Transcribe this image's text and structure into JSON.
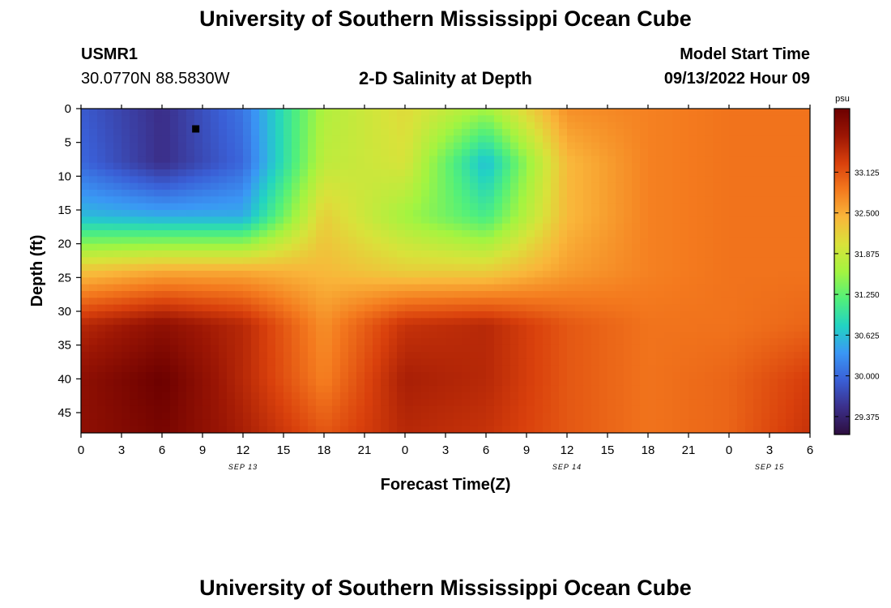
{
  "header": {
    "title": "University of Southern Mississippi Ocean Cube",
    "station_id": "USMR1",
    "coordinates": "30.0770N  88.5830W",
    "chart_title": "2-D Salinity at Depth",
    "model_start_label": "Model Start Time",
    "model_start_value": "09/13/2022 Hour 09"
  },
  "footer": {
    "title": "University of Southern Mississippi Ocean Cube"
  },
  "colors": {
    "stops": [
      "#2d0e3e",
      "#3b2f8a",
      "#3a5fd6",
      "#3a97f5",
      "#22d3c3",
      "#52f07a",
      "#a4f440",
      "#d9e23a",
      "#f9b63a",
      "#f47a1e",
      "#d9400c",
      "#9c1604",
      "#6c0000"
    ]
  },
  "chart_data": {
    "type": "heatmap",
    "title": "2-D Salinity at Depth",
    "xlabel": "Forecast Time(Z)",
    "ylabel": "Depth (ft)",
    "x_hours": [
      0,
      6,
      12,
      18,
      24,
      30,
      36,
      42,
      48,
      54
    ],
    "y_depths": [
      0,
      8,
      16,
      24,
      32,
      40,
      48
    ],
    "values": [
      [
        29.9,
        29.5,
        30.1,
        31.7,
        32.1,
        31.6,
        32.7,
        32.8,
        32.9,
        32.9
      ],
      [
        30.0,
        29.5,
        30.0,
        31.8,
        32.0,
        30.6,
        32.4,
        32.8,
        32.9,
        32.9
      ],
      [
        30.6,
        30.5,
        30.5,
        32.2,
        31.6,
        31.1,
        32.4,
        32.8,
        32.9,
        32.9
      ],
      [
        32.3,
        32.5,
        32.5,
        32.4,
        32.2,
        32.2,
        32.6,
        32.8,
        32.9,
        32.9
      ],
      [
        33.5,
        33.8,
        33.5,
        32.7,
        33.4,
        33.5,
        33.1,
        32.9,
        32.9,
        33.0
      ],
      [
        33.8,
        34.1,
        33.5,
        32.8,
        33.6,
        33.5,
        33.1,
        32.9,
        33.0,
        33.3
      ],
      [
        33.8,
        34.0,
        33.6,
        33.1,
        33.5,
        33.4,
        33.1,
        32.9,
        33.0,
        33.4
      ]
    ],
    "clim": [
      29.1,
      34.1
    ],
    "colorbar_unit": "psu",
    "colorbar_ticks": [
      33.125,
      32.5,
      31.875,
      31.25,
      30.625,
      30.0,
      29.375
    ],
    "colorbar_tick_labels": [
      "33.125",
      "32.500",
      "31.875",
      "31.250",
      "30.625",
      "30.000",
      "29.375"
    ],
    "x_tick_hours": [
      0,
      3,
      6,
      9,
      12,
      15,
      18,
      21,
      24,
      27,
      30,
      33,
      36,
      39,
      42,
      45,
      48,
      51,
      54
    ],
    "x_tick_labels": [
      "0",
      "3",
      "6",
      "9",
      "12",
      "15",
      "18",
      "21",
      "0",
      "3",
      "6",
      "9",
      "12",
      "15",
      "18",
      "21",
      "0",
      "3",
      "6"
    ],
    "x_range": [
      0,
      54
    ],
    "y_range": [
      0,
      48
    ],
    "y_ticks": [
      0,
      5,
      10,
      15,
      20,
      25,
      30,
      35,
      40,
      45
    ],
    "y_tick_labels": [
      "0",
      "5",
      "10",
      "15",
      "20",
      "25",
      "30",
      "35",
      "40",
      "45"
    ],
    "date_markers": [
      {
        "hour": 12,
        "label": "SEP 13"
      },
      {
        "hour": 36,
        "label": "SEP 14"
      },
      {
        "hour": 51,
        "label": "SEP 15"
      }
    ],
    "station_marker": {
      "hour": 8.5,
      "depth": 3
    }
  }
}
